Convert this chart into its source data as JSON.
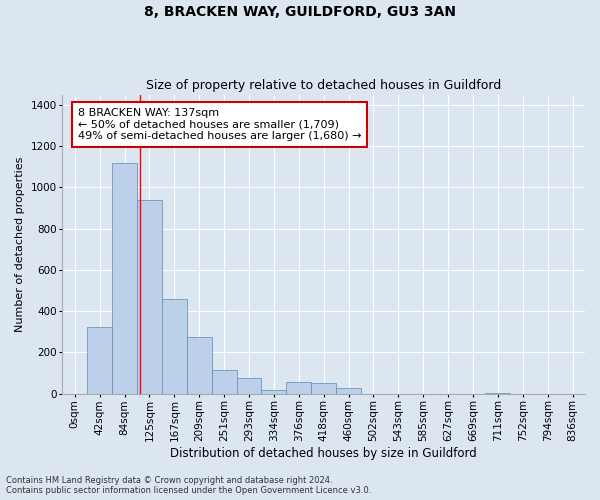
{
  "title": "8, BRACKEN WAY, GUILDFORD, GU3 3AN",
  "subtitle": "Size of property relative to detached houses in Guildford",
  "xlabel": "Distribution of detached houses by size in Guildford",
  "ylabel": "Number of detached properties",
  "footer_line1": "Contains HM Land Registry data © Crown copyright and database right 2024.",
  "footer_line2": "Contains public sector information licensed under the Open Government Licence v3.0.",
  "bin_labels": [
    "0sqm",
    "42sqm",
    "84sqm",
    "125sqm",
    "167sqm",
    "209sqm",
    "251sqm",
    "293sqm",
    "334sqm",
    "376sqm",
    "418sqm",
    "460sqm",
    "502sqm",
    "543sqm",
    "585sqm",
    "627sqm",
    "669sqm",
    "711sqm",
    "752sqm",
    "794sqm",
    "836sqm"
  ],
  "bar_values": [
    0,
    325,
    1120,
    940,
    460,
    275,
    115,
    75,
    20,
    55,
    50,
    30,
    0,
    0,
    0,
    0,
    0,
    5,
    0,
    0,
    0
  ],
  "bar_color": "#bdd0e9",
  "bar_edge_color": "#5b8ab5",
  "bar_edge_width": 0.5,
  "bg_color": "#dce6f1",
  "plot_bg_color": "#dce6f1",
  "grid_color": "#ffffff",
  "red_line_x": 2.6,
  "annotation_text": "8 BRACKEN WAY: 137sqm\n← 50% of detached houses are smaller (1,709)\n49% of semi-detached houses are larger (1,680) →",
  "annotation_box_color": "#ffffff",
  "annotation_box_edge": "#cc0000",
  "ylim": [
    0,
    1450
  ],
  "yticks": [
    0,
    200,
    400,
    600,
    800,
    1000,
    1200,
    1400
  ],
  "title_fontsize": 10,
  "subtitle_fontsize": 9,
  "annotation_fontsize": 8,
  "ylabel_fontsize": 8,
  "xlabel_fontsize": 8.5,
  "tick_fontsize": 7.5,
  "footer_fontsize": 6
}
